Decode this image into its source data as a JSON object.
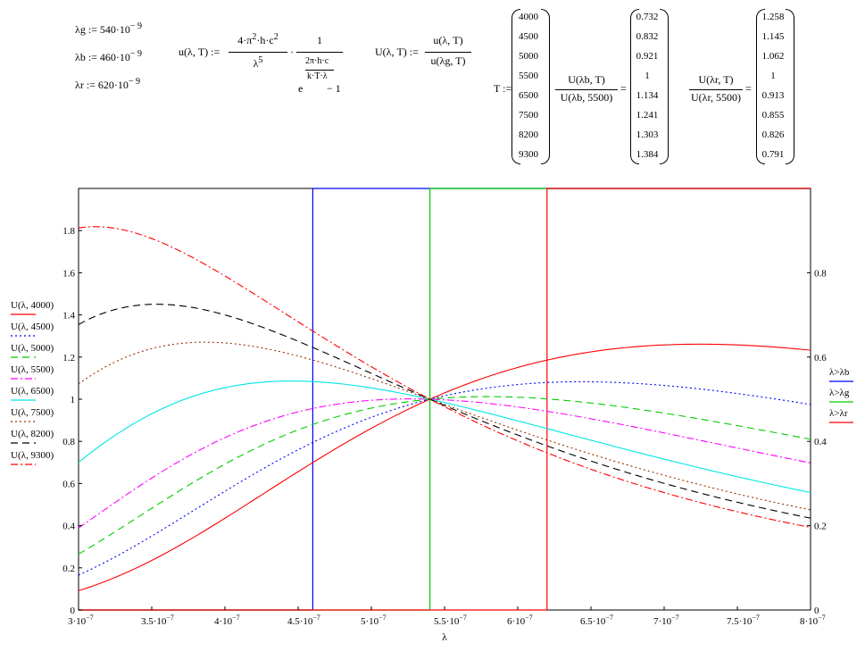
{
  "defs": {
    "lg": "λg := 540·10",
    "lb": "λb := 460·10",
    "lr": "λr := 620·10",
    "exp": "− 9",
    "u_lhs": "u(λ, T) :=",
    "u_num1": "4·π",
    "u_num1_sup": "2",
    "u_num1_rest": "·h·c",
    "u_num1_sup2": "2",
    "u_den1": "λ",
    "u_den1_sup": "5",
    "u_num2": "1",
    "u_den2_e": "e",
    "u_den2_exp_num": "2π·h·c",
    "u_den2_exp_den": "k·T·λ",
    "u_den2_rest": "− 1",
    "U_lhs": "U(λ, T) :=",
    "U_num": "u(λ, T)",
    "U_den": "u(λg, T)",
    "T_lhs": "T :=",
    "T_values": [
      "4000",
      "4500",
      "5000",
      "5500",
      "6500",
      "7500",
      "8200",
      "9300"
    ],
    "rb_num": "U(λb, T)",
    "rb_den": "U(λb, 5500)",
    "rb_values": [
      "0.732",
      "0.832",
      "0.921",
      "1",
      "1.134",
      "1.241",
      "1.303",
      "1.384"
    ],
    "rr_num": "U(λr, T)",
    "rr_den": "U(λr, 5500)",
    "rr_values": [
      "1.258",
      "1.145",
      "1.062",
      "1",
      "0.913",
      "0.855",
      "0.826",
      "0.791"
    ],
    "eq": "="
  },
  "chart_data": {
    "type": "line",
    "xlabel": "λ",
    "xlim": [
      3e-07,
      8e-07
    ],
    "ylim_left": [
      0,
      2.0
    ],
    "ylim_right": [
      0,
      1.0
    ],
    "x_ticks": [
      "3·10",
      "3.5·10",
      "4·10",
      "4.5·10",
      "5·10",
      "5.5·10",
      "6·10",
      "6.5·10",
      "7·10",
      "7.5·10",
      "8·10"
    ],
    "x_tick_exp": "−7",
    "x_tick_values": [
      3e-07,
      3.5e-07,
      4e-07,
      4.5e-07,
      5e-07,
      5.5e-07,
      6e-07,
      6.5e-07,
      7e-07,
      7.5e-07,
      8e-07
    ],
    "y_ticks_left": [
      "0",
      "0.2",
      "0.4",
      "0.6",
      "0.8",
      "1",
      "1.2",
      "1.4",
      "1.6",
      "1.8"
    ],
    "y_tick_values_left": [
      0,
      0.2,
      0.4,
      0.6,
      0.8,
      1,
      1.2,
      1.4,
      1.6,
      1.8
    ],
    "y_ticks_right": [
      "0",
      "0.2",
      "0.4",
      "0.6",
      "0.8"
    ],
    "y_tick_values_right": [
      0,
      0.2,
      0.4,
      0.6,
      0.8
    ],
    "temps": [
      4000,
      4500,
      5000,
      5500,
      6500,
      7500,
      8200,
      9300
    ],
    "lambda_g": 5.4e-07,
    "series": [
      {
        "name": "U(λ, 4000)",
        "T": 4000,
        "color": "#ff0000",
        "dash": ""
      },
      {
        "name": "U(λ, 4500)",
        "T": 4500,
        "color": "#0000ff",
        "dash": "2,3"
      },
      {
        "name": "U(λ, 5000)",
        "T": 5000,
        "color": "#00cc00",
        "dash": "8,5"
      },
      {
        "name": "U(λ, 5500)",
        "T": 5500,
        "color": "#ff00ff",
        "dash": "8,3,2,3"
      },
      {
        "name": "U(λ, 6500)",
        "T": 6500,
        "color": "#00e5e5",
        "dash": ""
      },
      {
        "name": "U(λ, 7500)",
        "T": 7500,
        "color": "#993300",
        "dash": "2,3"
      },
      {
        "name": "U(λ, 8200)",
        "T": 8200,
        "color": "#000000",
        "dash": "8,5"
      },
      {
        "name": "U(λ, 9300)",
        "T": 9300,
        "color": "#ff0000",
        "dash": "8,3,2,3"
      }
    ],
    "step_series": [
      {
        "name": "λ>λb",
        "at": 4.6e-07,
        "color": "#0000ff"
      },
      {
        "name": "λ>λg",
        "at": 5.4e-07,
        "color": "#00cc00"
      },
      {
        "name": "λ>λr",
        "at": 6.2e-07,
        "color": "#ff0000"
      }
    ]
  }
}
